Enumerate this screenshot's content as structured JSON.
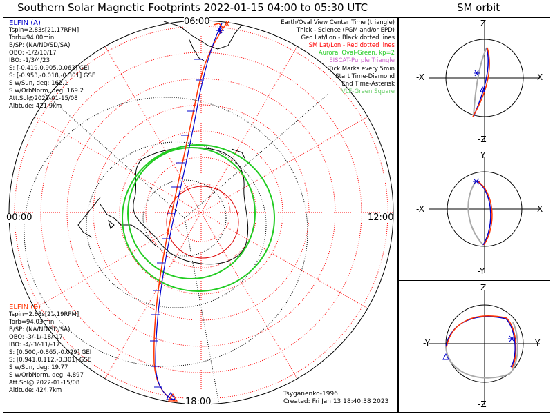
{
  "title": "Southern Solar Magnetic Footprints 2022-01-15 04:00 to 05:30 UTC",
  "orbit_title": "SM orbit",
  "hours": {
    "top": "06:00",
    "left": "00:00",
    "right": "12:00",
    "bottom": "18:00"
  },
  "legend": [
    {
      "text": "Earth/Oval View Center Time (triangle)",
      "color": "#000000"
    },
    {
      "text": "Thick - Science (FGM and/or EPD)",
      "color": "#000000"
    },
    {
      "text": "Geo Lat/Lon - Black dotted lines",
      "color": "#000000"
    },
    {
      "text": "SM Lat/Lon - Red dotted lines",
      "color": "#ff0000"
    },
    {
      "text": "Auroral Oval-Green, kp=2",
      "color": "#22cc22"
    },
    {
      "text": "EISCAT-Purple Triangle",
      "color": "#cc66cc"
    },
    {
      "text": "Tick Marks every 5min",
      "color": "#000000"
    },
    {
      "text": "Start Time-Diamond",
      "color": "#000000"
    },
    {
      "text": "End Time-Asterisk",
      "color": "#000000"
    },
    {
      "text": "VLF-Green Square",
      "color": "#66cc66"
    }
  ],
  "elfin_a": {
    "name": "ELFIN (A)",
    "color": "#0000cc",
    "lines": [
      "Tspin=2.83s[21.17RPM]",
      "Torb=94.00min",
      "B/SP: (NA/ND/SD/SA)",
      "OBO: -1/2/10/17",
      "IBO: -1/3/4/23",
      "S: [-0.419,0.905,0.063] GEI",
      "S: [-0.953,-0.018,-0.301] GSE",
      "S w/Sun, deg: 162.1",
      "S w/OrbNorm, deg: 169.2",
      "Att.Sol@2022-01-15/08",
      "Altitude: 421.9km"
    ]
  },
  "elfin_b": {
    "name": "ELFIN (B)",
    "color": "#ff3300",
    "lines": [
      "Tspin=2.83s[21.19RPM]",
      "Torb=94.03min",
      "B/SP: (NA/ND/SD/SA)",
      "OBO: -3/-1/-18/-17",
      "IBO: -4/-3/-11/-17",
      "S: [0.500,-0.865,-0.029] GEI",
      "S: [0.941,0.112,-0.301] GSE",
      "S w/Sun, deg: 19.77",
      "S w/OrbNorm, deg: 4.897",
      "Att.Sol@ 2022-01-15/08",
      "Altitude: 424.7km"
    ]
  },
  "credit": "Tsyganenko-1996",
  "created": "Created: Fri Jan 13 18:40:38 2023",
  "orbit_panels": [
    {
      "top": "Z",
      "bottom": "-Z",
      "left": "-X",
      "right": "X"
    },
    {
      "top": "Y",
      "bottom": "-Y",
      "left": "-X",
      "right": "X"
    },
    {
      "top": "Z",
      "bottom": "-Z",
      "left": "-Y",
      "right": "Y"
    }
  ],
  "colors": {
    "elfin_a": "#0000cc",
    "elfin_b": "#ff3300",
    "sm_grid": "#ff0000",
    "geo_grid": "#000000",
    "oval": "#22cc22",
    "orbit_gray": "#aaaaaa"
  }
}
